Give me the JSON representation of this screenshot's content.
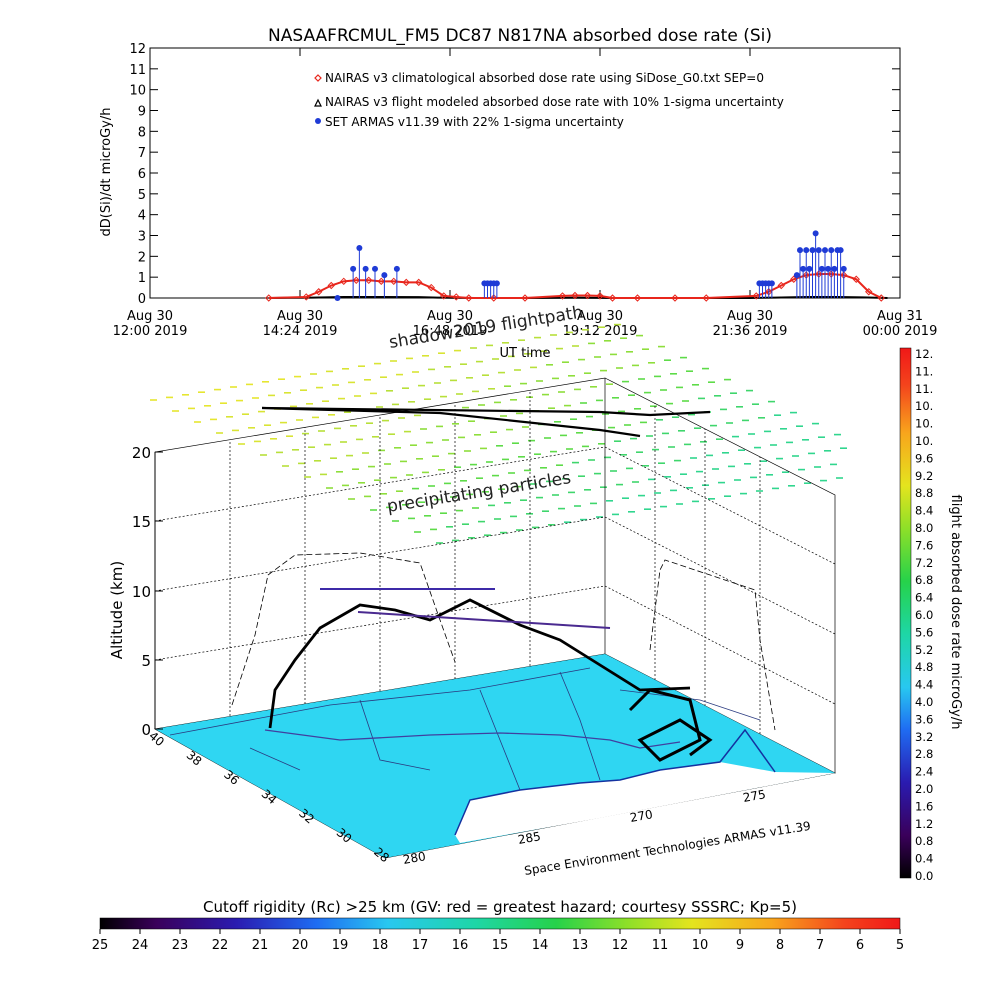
{
  "chart_data": [
    {
      "type": "line",
      "title": "NASAAFRCMUL_FM5 DC87 N817NA absorbed dose rate (Si)",
      "ylabel": "dD(Si)/dt microGy/h",
      "xlabel": "UT time",
      "ylim": [
        0,
        12
      ],
      "yticks": [
        "0",
        "1",
        "2",
        "3",
        "4",
        "5",
        "6",
        "7",
        "8",
        "9",
        "10",
        "11",
        "12"
      ],
      "xlim_hours": [
        12.0,
        24.0
      ],
      "xticks": [
        {
          "line1": "Aug 30",
          "line2": "12:00 2019",
          "hour": 12.0
        },
        {
          "line1": "Aug 30",
          "line2": "14:24 2019",
          "hour": 14.4
        },
        {
          "line1": "Aug 30",
          "line2": "16:48 2019",
          "hour": 16.8
        },
        {
          "line1": "Aug 30",
          "line2": "19:12 2019",
          "hour": 19.2
        },
        {
          "line1": "Aug 30",
          "line2": "21:36 2019",
          "hour": 21.6
        },
        {
          "line1": "Aug 31",
          "line2": "00:00 2019",
          "hour": 24.0
        }
      ],
      "series": [
        {
          "name": "NAIRAS v3 climatological absorbed dose rate using SiDose_G0.txt SEP=0",
          "color": "#e8261c",
          "marker": "diamond",
          "x": [
            13.9,
            14.5,
            14.7,
            14.9,
            15.1,
            15.3,
            15.5,
            15.7,
            15.9,
            16.1,
            16.3,
            16.5,
            16.7,
            16.9,
            17.1,
            17.5,
            18.0,
            18.6,
            18.8,
            19.0,
            19.2,
            19.4,
            19.8,
            20.4,
            20.9,
            21.7,
            21.9,
            22.1,
            22.3,
            22.5,
            22.7,
            22.9,
            23.1,
            23.3,
            23.5,
            23.7
          ],
          "y": [
            0.0,
            0.05,
            0.3,
            0.6,
            0.8,
            0.85,
            0.85,
            0.8,
            0.8,
            0.75,
            0.75,
            0.5,
            0.1,
            0.05,
            0.0,
            0.0,
            0.0,
            0.1,
            0.12,
            0.12,
            0.1,
            0.0,
            0.0,
            0.0,
            0.0,
            0.1,
            0.3,
            0.6,
            0.9,
            1.1,
            1.15,
            1.15,
            1.1,
            0.9,
            0.3,
            0.0
          ]
        },
        {
          "name": "NAIRAS v3 flight modeled absorbed dose rate with 10% 1-sigma uncertainty",
          "color": "#000000",
          "marker": "triangle",
          "x": [
            13.9,
            14.6,
            15.1,
            15.7,
            16.3,
            16.6,
            17.2,
            18.0,
            18.8,
            19.5,
            20.5,
            21.6,
            22.0,
            22.5,
            23.0,
            23.4,
            23.8
          ],
          "y": [
            0.0,
            0.02,
            0.05,
            0.05,
            0.04,
            0.02,
            0.0,
            0.0,
            0.01,
            0.0,
            0.0,
            0.0,
            0.02,
            0.05,
            0.05,
            0.03,
            0.0
          ]
        },
        {
          "name": "SET ARMAS v11.39 with 22% 1-sigma uncertainty",
          "color": "#1f3bd6",
          "marker": "circle",
          "x": [
            15.0,
            15.25,
            15.35,
            15.45,
            15.6,
            15.75,
            15.95,
            17.35,
            17.4,
            17.45,
            17.5,
            17.55,
            21.75,
            21.8,
            21.85,
            21.9,
            21.95,
            22.35,
            22.4,
            22.45,
            22.5,
            22.55,
            22.6,
            22.65,
            22.7,
            22.75,
            22.8,
            22.85,
            22.9,
            22.95,
            23.0,
            23.05,
            23.1
          ],
          "y": [
            0.0,
            1.4,
            2.4,
            1.4,
            1.4,
            1.1,
            1.4,
            0.7,
            0.7,
            0.7,
            0.7,
            0.7,
            0.7,
            0.7,
            0.7,
            0.7,
            0.7,
            1.1,
            2.3,
            1.4,
            2.3,
            1.4,
            2.3,
            3.1,
            2.3,
            1.4,
            2.3,
            1.4,
            2.3,
            1.4,
            2.3,
            2.3,
            1.4
          ]
        }
      ]
    },
    {
      "type": "3d-map",
      "zlabel": "Altitude (km)",
      "zticks": [
        "0",
        "5",
        "10",
        "15",
        "20"
      ],
      "lat_ticks": [
        "40",
        "38",
        "36",
        "34",
        "32",
        "30",
        "28"
      ],
      "lon_ticks": [
        "280",
        "285",
        "270",
        "275"
      ],
      "annotations": [
        "shadow2019 flightpath",
        "precipitating particles"
      ],
      "credit": "Space Environment Technologies ARMAS v11.39"
    }
  ],
  "right_colorbar": {
    "label": "flight absorbed dose rate microGy/h",
    "ticks": [
      "12.",
      "11.",
      "11.",
      "10.",
      "10.",
      "10.",
      "9.6",
      "9.2",
      "8.8",
      "8.4",
      "8.0",
      "7.6",
      "7.2",
      "6.8",
      "6.4",
      "6.0",
      "5.6",
      "5.2",
      "4.8",
      "4.4",
      "4.0",
      "3.6",
      "3.2",
      "2.8",
      "2.4",
      "2.0",
      "1.6",
      "1.2",
      "0.8",
      "0.4",
      "0.0"
    ]
  },
  "bottom_colorbar": {
    "title": "Cutoff rigidity (Rc) >25 km (GV: red = greatest hazard; courtesy SSSRC; Kp=5)",
    "ticks": [
      "25",
      "24",
      "23",
      "22",
      "21",
      "20",
      "19",
      "18",
      "17",
      "16",
      "15",
      "14",
      "13",
      "12",
      "11",
      "10",
      "9",
      "8",
      "7",
      "6",
      "5"
    ]
  }
}
